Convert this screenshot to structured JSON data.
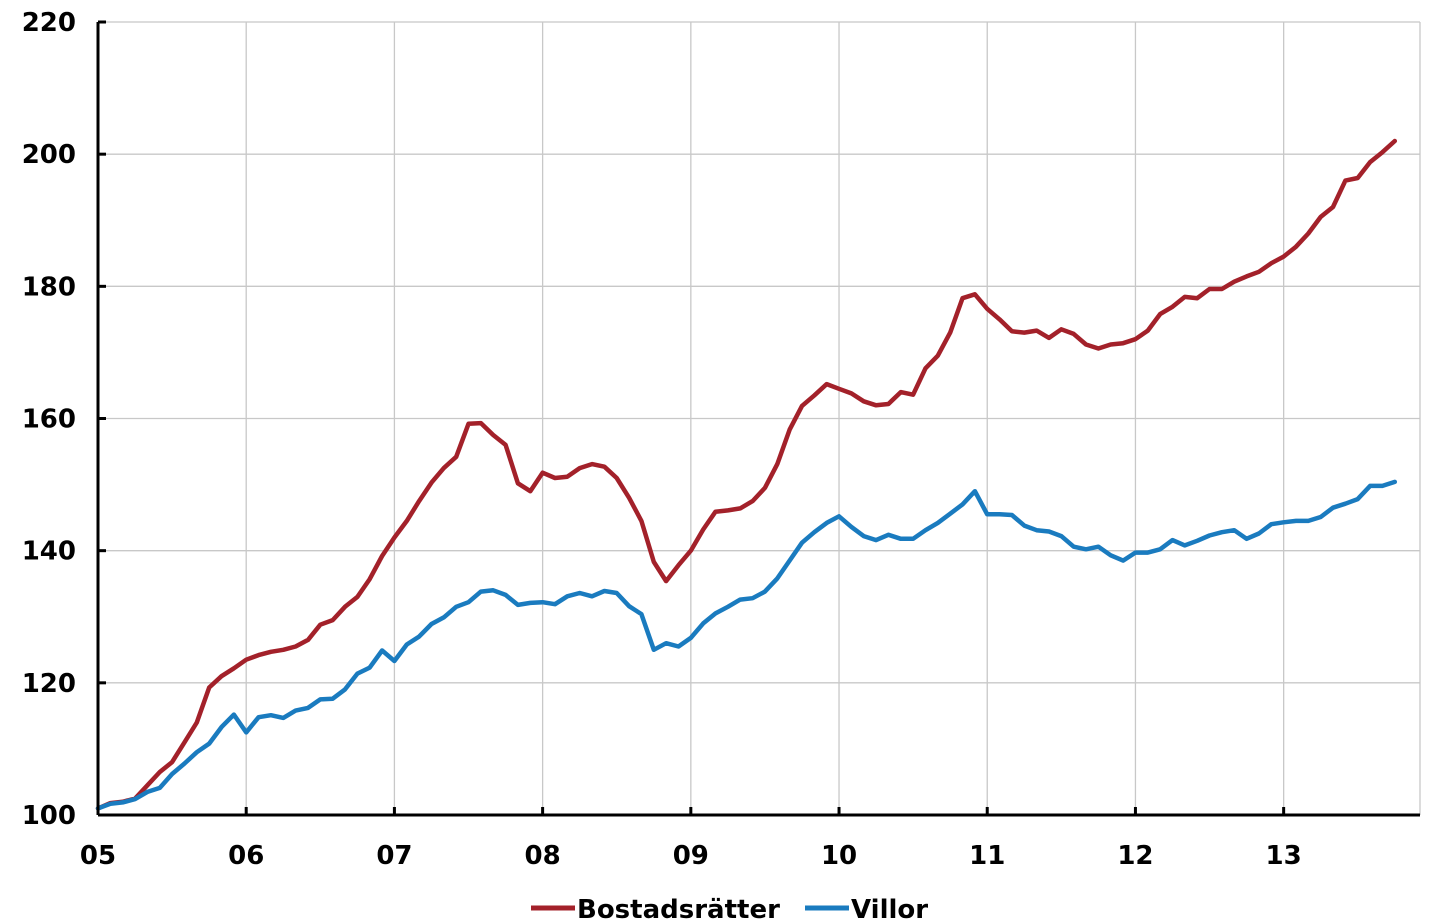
{
  "chart_data": {
    "type": "line",
    "title": "",
    "xlabel": "",
    "ylabel": "",
    "ylim": [
      100,
      220
    ],
    "yticks": [
      100,
      120,
      140,
      160,
      180,
      200,
      220
    ],
    "xlim": [
      2005,
      2013.92
    ],
    "xticks": [
      2005,
      2006,
      2007,
      2008,
      2009,
      2010,
      2011,
      2012,
      2013
    ],
    "xtick_labels": [
      "05",
      "06",
      "07",
      "08",
      "09",
      "10",
      "11",
      "12",
      "13"
    ],
    "grid": true,
    "legend_position": "bottom-center",
    "series": [
      {
        "name": "Bostadsrätter",
        "color": "#a3212a",
        "x_start": 2005,
        "x_step": 0.08333,
        "values": [
          101.0,
          101.8,
          102.0,
          102.5,
          104.5,
          106.5,
          108.0,
          111.0,
          114.0,
          119.3,
          121.0,
          122.2,
          123.5,
          124.2,
          124.7,
          125.0,
          125.5,
          126.5,
          128.8,
          129.5,
          131.5,
          133.0,
          135.7,
          139.2,
          142.0,
          144.5,
          147.5,
          150.3,
          152.5,
          154.2,
          159.2,
          159.3,
          157.5,
          156.0,
          150.2,
          149.0,
          151.8,
          151.0,
          151.2,
          152.5,
          153.1,
          152.7,
          151.0,
          148.0,
          144.5,
          138.3,
          135.4,
          137.8,
          140.0,
          143.2,
          145.9,
          146.1,
          146.4,
          147.5,
          149.5,
          153.1,
          158.3,
          161.9,
          163.5,
          165.2,
          164.5,
          163.8,
          162.6,
          162.0,
          162.2,
          164.0,
          163.6,
          167.6,
          169.5,
          173.0,
          178.2,
          178.8,
          176.6,
          175.0,
          173.2,
          173.0,
          173.3,
          172.2,
          173.5,
          172.8,
          171.2,
          170.6,
          171.2,
          171.4,
          172.0,
          173.3,
          175.8,
          176.9,
          178.4,
          178.2,
          179.6,
          179.6,
          180.7,
          181.5,
          182.2,
          183.5,
          184.5,
          186.0,
          188.0,
          190.5,
          192.0,
          196.0,
          196.4,
          198.8,
          200.3,
          202.0
        ]
      },
      {
        "name": "Villor",
        "color": "#1a7bbf",
        "x_start": 2005,
        "x_step": 0.08333,
        "values": [
          101.0,
          101.7,
          101.9,
          102.4,
          103.5,
          104.1,
          106.2,
          107.8,
          109.5,
          110.8,
          113.3,
          115.2,
          112.5,
          114.8,
          115.1,
          114.7,
          115.8,
          116.2,
          117.5,
          117.6,
          119.0,
          121.4,
          122.3,
          124.9,
          123.3,
          125.8,
          127.0,
          128.9,
          129.9,
          131.5,
          132.2,
          133.8,
          134.0,
          133.3,
          131.8,
          132.1,
          132.2,
          131.9,
          133.1,
          133.6,
          133.1,
          133.9,
          133.6,
          131.6,
          130.4,
          125.0,
          126.0,
          125.5,
          126.8,
          129.0,
          130.5,
          131.5,
          132.6,
          132.8,
          133.8,
          135.8,
          138.5,
          141.2,
          142.8,
          144.2,
          145.2,
          143.6,
          142.2,
          141.6,
          142.4,
          141.8,
          141.8,
          143.1,
          144.2,
          145.6,
          147.0,
          149.0,
          145.5,
          145.5,
          145.4,
          143.8,
          143.1,
          142.9,
          142.2,
          140.6,
          140.2,
          140.6,
          139.3,
          138.5,
          139.7,
          139.7,
          140.2,
          141.6,
          140.8,
          141.5,
          142.3,
          142.8,
          143.1,
          141.8,
          142.6,
          144.0,
          144.3,
          144.5,
          144.5,
          145.1,
          146.5,
          147.1,
          147.8,
          149.8,
          149.8,
          150.4
        ]
      }
    ]
  }
}
